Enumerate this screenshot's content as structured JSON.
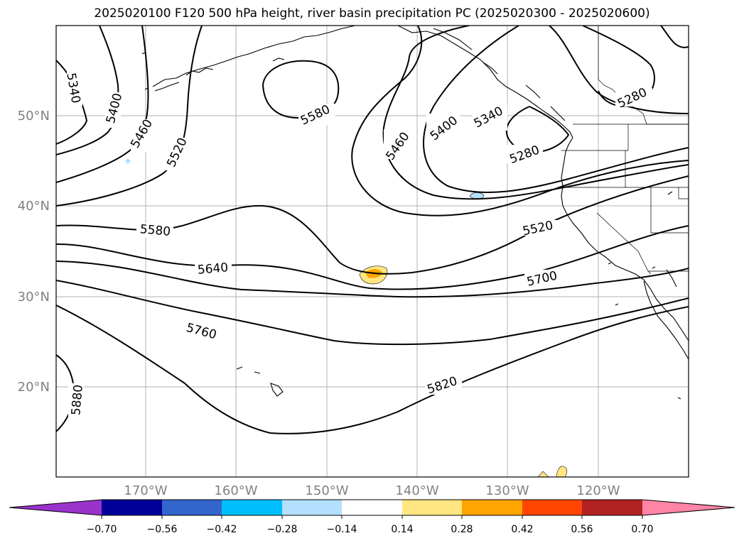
{
  "title": "2025020100 F120 500 hPa height, river basin precipitation PC (2025020300 - 2025020600)",
  "map": {
    "lat_labels": [
      "50°N",
      "40°N",
      "30°N",
      "20°N"
    ],
    "lon_labels": [
      "170°W",
      "160°W",
      "150°W",
      "140°W",
      "130°W",
      "120°W"
    ],
    "contour_labels": [
      "5340",
      "5400",
      "5460",
      "5520",
      "5580",
      "5640",
      "5760",
      "5880",
      "5580",
      "5460",
      "5400",
      "5340",
      "5280",
      "5280",
      "5520",
      "5700",
      "5820"
    ]
  },
  "colorbar": {
    "ticks": [
      "−0.70",
      "−0.56",
      "−0.42",
      "−0.28",
      "−0.14",
      "0.14",
      "0.28",
      "0.42",
      "0.56",
      "0.70"
    ],
    "colors": [
      "#9933cc",
      "#000099",
      "#3366cc",
      "#00bfff",
      "#b3e0ff",
      "#ffffff",
      "#ffe680",
      "#ffa500",
      "#ff4500",
      "#b22222",
      "#ff85a6"
    ]
  }
}
